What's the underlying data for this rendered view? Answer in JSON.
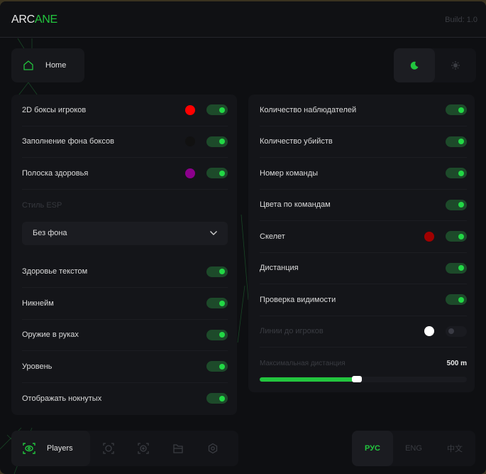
{
  "header": {
    "logo_white": "ARC",
    "logo_green": "ANE",
    "build": "Build: 1.0"
  },
  "home": {
    "label": "Home",
    "icon": "home-icon"
  },
  "theme": {
    "active": "dark",
    "dark_icon": "moon-icon",
    "light_icon": "sun-icon"
  },
  "left_panel": {
    "rows_top": [
      {
        "label": "2D боксы игроков",
        "color": "#ff0000",
        "enabled": true
      },
      {
        "label": "Заполнение фона боксов",
        "color": "#111111",
        "enabled": true
      },
      {
        "label": "Полоска здоровья",
        "color": "#8b008b",
        "enabled": true
      }
    ],
    "style_label": "Стиль ESP",
    "style_value": "Без фона",
    "rows_bottom": [
      {
        "label": "Здоровье текстом",
        "enabled": true
      },
      {
        "label": "Никнейм",
        "enabled": true
      },
      {
        "label": "Оружие в руках",
        "enabled": true
      },
      {
        "label": "Уровень",
        "enabled": true
      },
      {
        "label": "Отображать нокнутых",
        "enabled": true
      }
    ]
  },
  "right_panel": {
    "rows": [
      {
        "label": "Количество наблюдателей",
        "enabled": true
      },
      {
        "label": "Количество убийств",
        "enabled": true
      },
      {
        "label": "Номер команды",
        "enabled": true
      },
      {
        "label": "Цвета по командам",
        "enabled": true
      },
      {
        "label": "Скелет",
        "color": "#a00000",
        "enabled": true
      },
      {
        "label": "Дистанция",
        "enabled": true
      },
      {
        "label": "Проверка видимости",
        "enabled": true
      },
      {
        "label": "Линии до игроков",
        "color": "#ffffff",
        "enabled": false
      }
    ],
    "slider": {
      "label": "Максимальная дистанция",
      "value_text": "500 m",
      "fraction": 0.47
    }
  },
  "bottom_nav": {
    "active_label": "Players",
    "icons": [
      "players-icon",
      "aim-icon",
      "visuals-icon",
      "folder-icon",
      "gear-icon"
    ]
  },
  "languages": {
    "items": [
      "РУС",
      "ENG",
      "中文"
    ],
    "active": 0
  },
  "colors": {
    "accent": "#22c53e",
    "background": "#0e0f12",
    "panel": "#141519"
  }
}
